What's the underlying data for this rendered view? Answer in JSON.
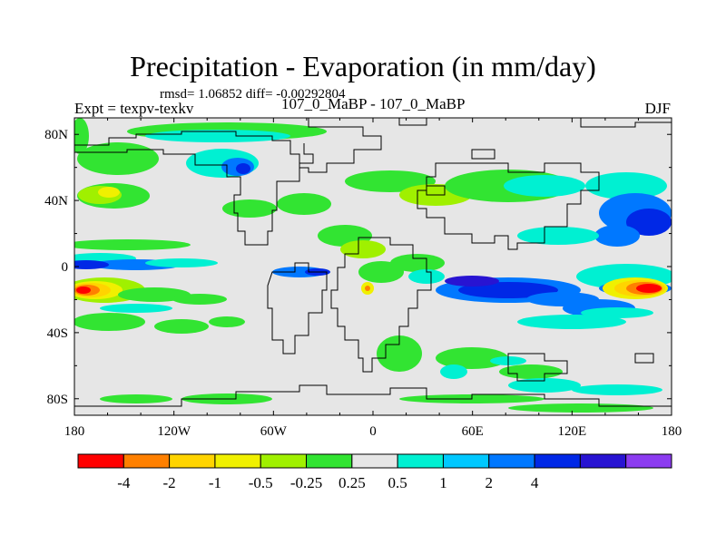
{
  "header": {
    "title": "Precipitation - Evaporation (in mm/day)",
    "stats": "rmsd= 1.06852 diff= -0.00292804",
    "experiment": "Expt = texpv-texkv",
    "center_label": "107_0_MaBP - 107_0_MaBP",
    "season": "DJF"
  },
  "chart_data": {
    "type": "heatmap",
    "title": "Precipitation - Evaporation (in mm/day)",
    "variable": "P-E difference (mm/day)",
    "x_axis": {
      "range": [
        -180,
        180
      ],
      "ticks": [
        -180,
        -120,
        -60,
        0,
        60,
        120,
        180
      ],
      "tick_labels": [
        "180",
        "120W",
        "60W",
        "0",
        "60E",
        "120E",
        "180"
      ]
    },
    "y_axis": {
      "range": [
        -90,
        90
      ],
      "ticks": [
        80,
        40,
        0,
        -40,
        -80
      ],
      "tick_labels": [
        "80N",
        "40N",
        "0",
        "40S",
        "80S"
      ]
    },
    "colorbar": {
      "levels": [
        -4,
        -2,
        -1,
        -0.5,
        -0.25,
        0.25,
        0.5,
        1,
        2,
        4
      ],
      "labels": [
        "-4",
        "-2",
        "-1",
        "-0.5",
        "-0.25",
        "0.25",
        "0.5",
        "1",
        "2",
        "4"
      ],
      "colors": [
        "#ff0000",
        "#ff8000",
        "#ffd400",
        "#f0f000",
        "#a0f000",
        "#32e432",
        "#e6e6e6",
        "#00f0d2",
        "#00c8ff",
        "#0078ff",
        "#0028e6",
        "#2814d2",
        "#8c3cf0"
      ]
    },
    "features": [
      {
        "name": "tropical central Pacific south of equator",
        "sign": "negative",
        "magnitude": "below -4"
      },
      {
        "name": "tropical western Pacific / Indian Ocean south of equator",
        "sign": "positive",
        "magnitude": "2 to 4"
      },
      {
        "name": "North Pacific mid-latitudes",
        "sign": "positive",
        "magnitude": "1 to 2"
      },
      {
        "name": "Northeast Pacific 30-45N",
        "sign": "negative",
        "magnitude": "-1 to -2"
      },
      {
        "name": "Equatorial Atlantic",
        "sign": "negative",
        "magnitude": "-1 to -2"
      }
    ]
  },
  "colors": {
    "neutral": "#e6e6e6",
    "outline": "#000000"
  }
}
